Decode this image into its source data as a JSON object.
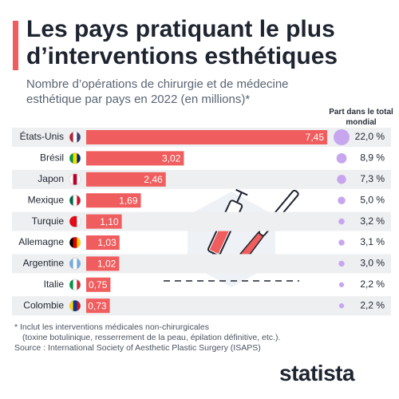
{
  "chart_data": {
    "type": "bar",
    "title": "Les pays pratiquant le plus d’interventions esthétiques",
    "subtitle": "Nombre d’opérations de chirurgie et de médecine esthétique par pays en 2022 (en millions)*",
    "categories": [
      "États-Unis",
      "Brésil",
      "Japon",
      "Mexique",
      "Turquie",
      "Allemagne",
      "Argentine",
      "Italie",
      "Colombie"
    ],
    "values": [
      7.45,
      3.02,
      2.46,
      1.69,
      1.1,
      1.03,
      1.02,
      0.75,
      0.73
    ],
    "value_labels": [
      "7,45",
      "3,02",
      "2,46",
      "1,69",
      "1,10",
      "1,03",
      "1,02",
      "0,75",
      "0,73"
    ],
    "color": "#f05d5e",
    "share_title": "Part dans le total mondial",
    "shares": [
      22.0,
      8.9,
      7.3,
      5.0,
      3.2,
      3.1,
      3.0,
      2.2,
      2.2
    ],
    "share_labels": [
      "22,0 %",
      "8,9 %",
      "7,3 %",
      "5,0 %",
      "3,2 %",
      "3,1 %",
      "3,0 %",
      "2,2 %",
      "2,2 %"
    ],
    "share_color": "#c8a6ef",
    "footnote_lines": [
      "* Inclut les interventions médicales non-chirurgicales",
      "(toxine botulinique, resserrement de la peau, épilation définitive, etc.)."
    ],
    "source": "Source : International Society of Aesthetic Plastic Surgery (ISAPS)",
    "brand": "statista"
  }
}
